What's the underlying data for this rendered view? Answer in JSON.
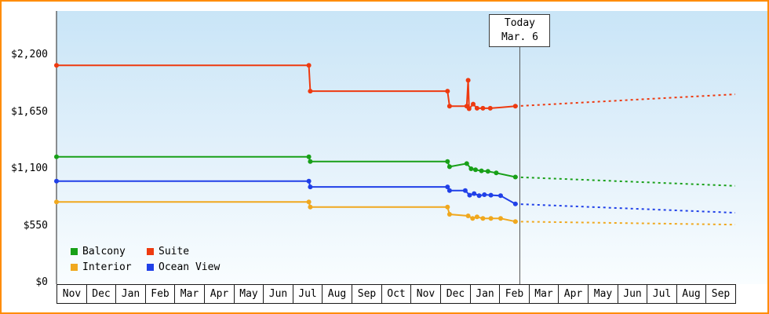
{
  "chart_data": {
    "type": "line",
    "ylim": [
      0,
      2200
    ],
    "grid": false,
    "legend_position": "bottom-left",
    "yticks": [
      {
        "value": 2200,
        "label": "$2,200"
      },
      {
        "value": 1650,
        "label": "$1,650"
      },
      {
        "value": 1100,
        "label": "$1,100"
      },
      {
        "value": 550,
        "label": "$550"
      },
      {
        "value": 0,
        "label": "$0"
      }
    ],
    "months": [
      "Nov",
      "Dec",
      "Jan",
      "Feb",
      "Mar",
      "Apr",
      "May",
      "Jun",
      "Jul",
      "Aug",
      "Sep",
      "Oct",
      "Nov",
      "Dec",
      "Jan",
      "Feb",
      "Mar",
      "Apr",
      "May",
      "Jun",
      "Jul",
      "Aug",
      "Sep"
    ],
    "today": {
      "x": 15.7,
      "line1": "Today",
      "line2": "Mar. 6"
    },
    "series": [
      {
        "name": "Suite",
        "color": "#ee3a10",
        "points": [
          [
            0,
            2100
          ],
          [
            8.55,
            2100
          ],
          [
            8.6,
            1850
          ],
          [
            13.25,
            1850
          ],
          [
            13.32,
            1705
          ],
          [
            13.9,
            1705
          ],
          [
            13.95,
            1955
          ],
          [
            13.98,
            1680
          ],
          [
            14.12,
            1725
          ],
          [
            14.25,
            1685
          ],
          [
            14.45,
            1685
          ],
          [
            14.7,
            1685
          ],
          [
            15.55,
            1705
          ]
        ],
        "projection_end": [
          23,
          1820
        ]
      },
      {
        "name": "Balcony",
        "color": "#18a018",
        "points": [
          [
            0,
            1215
          ],
          [
            8.55,
            1215
          ],
          [
            8.6,
            1170
          ],
          [
            13.25,
            1170
          ],
          [
            13.32,
            1120
          ],
          [
            13.9,
            1150
          ],
          [
            14.05,
            1100
          ],
          [
            14.2,
            1090
          ],
          [
            14.4,
            1080
          ],
          [
            14.62,
            1075
          ],
          [
            14.9,
            1060
          ],
          [
            15.55,
            1020
          ]
        ],
        "projection_end": [
          23,
          935
        ]
      },
      {
        "name": "Ocean View",
        "color": "#2040e8",
        "points": [
          [
            0,
            980
          ],
          [
            8.55,
            980
          ],
          [
            8.6,
            925
          ],
          [
            13.25,
            925
          ],
          [
            13.32,
            890
          ],
          [
            13.85,
            890
          ],
          [
            14.0,
            845
          ],
          [
            14.15,
            860
          ],
          [
            14.32,
            840
          ],
          [
            14.5,
            850
          ],
          [
            14.72,
            845
          ],
          [
            15.05,
            840
          ],
          [
            15.55,
            760
          ]
        ],
        "projection_end": [
          23,
          675
        ]
      },
      {
        "name": "Interior",
        "color": "#f0a81e",
        "points": [
          [
            0,
            780
          ],
          [
            8.55,
            780
          ],
          [
            8.6,
            730
          ],
          [
            13.25,
            730
          ],
          [
            13.32,
            660
          ],
          [
            13.95,
            645
          ],
          [
            14.1,
            620
          ],
          [
            14.25,
            635
          ],
          [
            14.45,
            620
          ],
          [
            14.72,
            620
          ],
          [
            15.05,
            620
          ],
          [
            15.55,
            590
          ]
        ],
        "projection_end": [
          23,
          560
        ]
      }
    ],
    "legend": [
      {
        "label": "Balcony",
        "color": "#18a018"
      },
      {
        "label": "Suite",
        "color": "#ee3a10"
      },
      {
        "label": "Interior",
        "color": "#f0a81e"
      },
      {
        "label": "Ocean View",
        "color": "#2040e8"
      }
    ],
    "frame_border_color": "#ff8c00"
  }
}
